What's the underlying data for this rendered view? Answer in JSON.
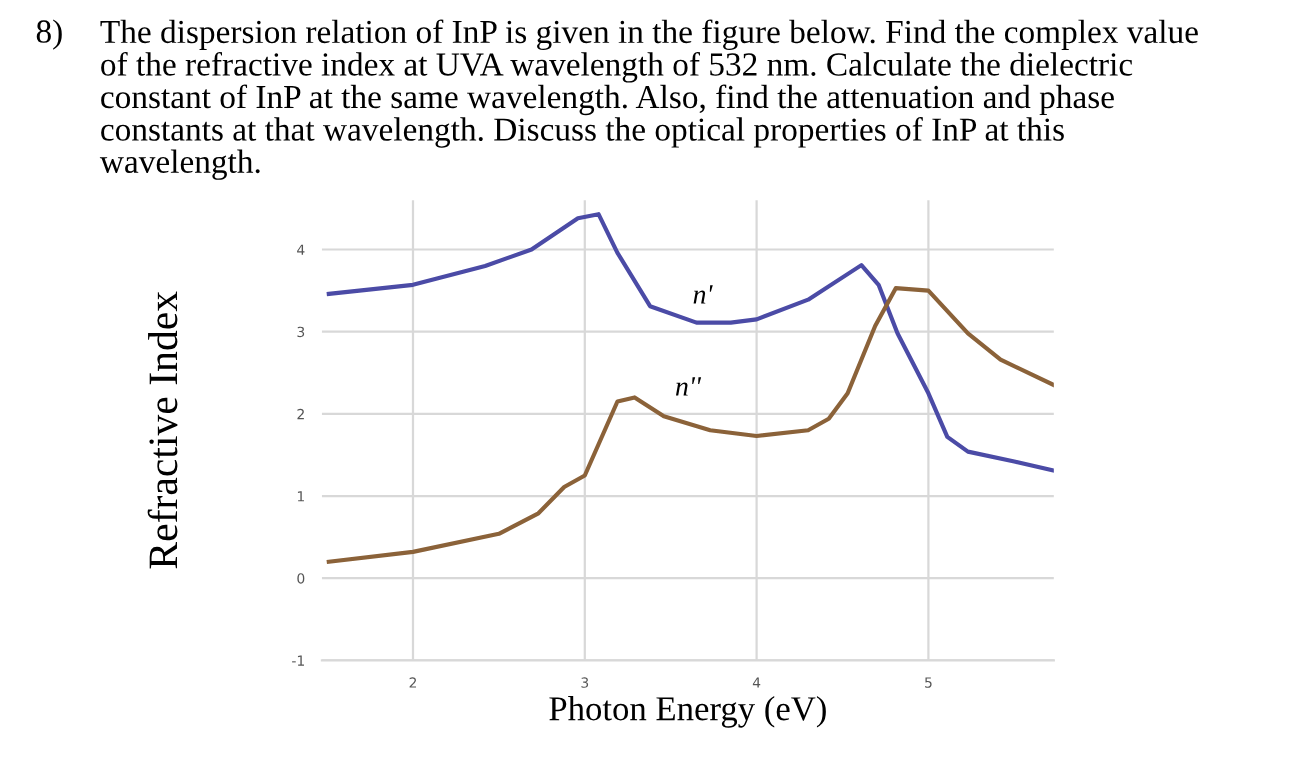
{
  "chart_data": {
    "type": "line",
    "title": "The dispersion relation of InP is given in the figure below. Find the complex value\nof the refractive index at UVA wavelength of 532 nm. Calculate the dielectric\nconstant of InP at the same wavelength. Also, find the attenuation and phase\nconstants at that wavelength. Discuss the optical properties of InP at this\nwavelength.",
    "xlabel": "Photon Energy (eV)",
    "ylabel": "Refractive Index",
    "annotations": [
      "8)"
    ],
    "series": [
      {
        "name": "n'",
        "color": "#4b4ba6",
        "x": [
          1.51,
          2.0,
          2.42,
          2.69,
          2.96,
          3.08,
          3.19,
          3.38,
          3.65,
          3.85,
          4.0,
          4.3,
          4.61,
          4.71,
          4.82,
          5.0,
          5.11,
          5.23,
          5.5,
          5.73
        ],
        "values": [
          3.46,
          3.57,
          3.8,
          4.0,
          4.38,
          4.43,
          3.96,
          3.31,
          3.11,
          3.11,
          3.15,
          3.39,
          3.81,
          3.57,
          2.98,
          2.25,
          1.72,
          1.54,
          1.42,
          1.31
        ]
      },
      {
        "name": "n''",
        "color": "#8b6239",
        "x": [
          1.51,
          2.0,
          2.5,
          2.73,
          2.88,
          3.0,
          3.19,
          3.29,
          3.46,
          3.73,
          4.0,
          4.3,
          4.42,
          4.53,
          4.69,
          4.81,
          5.0,
          5.23,
          5.42,
          5.73
        ],
        "values": [
          0.2,
          0.32,
          0.54,
          0.79,
          1.11,
          1.25,
          2.15,
          2.2,
          1.97,
          1.8,
          1.73,
          1.8,
          1.94,
          2.25,
          3.07,
          3.53,
          3.5,
          2.98,
          2.66,
          2.35
        ]
      }
    ],
    "xlim": [
      1.47,
      5.73
    ],
    "ylim": [
      -1,
      4.6
    ],
    "xticks": [
      2,
      3,
      4,
      5
    ],
    "yticks": [
      -1,
      0,
      1,
      2,
      3,
      4
    ],
    "grid": true,
    "marker": "none",
    "line_style": "solid"
  }
}
